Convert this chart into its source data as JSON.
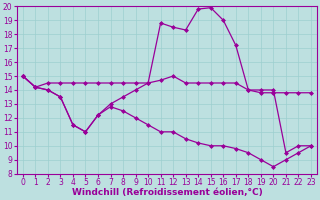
{
  "xlabel": "Windchill (Refroidissement éolien,°C)",
  "bg_color": "#bde0e0",
  "grid_color": "#9ccfcf",
  "line_color": "#990099",
  "xlim": [
    -0.5,
    23.5
  ],
  "ylim": [
    8,
    20
  ],
  "xticks": [
    0,
    1,
    2,
    3,
    4,
    5,
    6,
    7,
    8,
    9,
    10,
    11,
    12,
    13,
    14,
    15,
    16,
    17,
    18,
    19,
    20,
    21,
    22,
    23
  ],
  "yticks": [
    8,
    9,
    10,
    11,
    12,
    13,
    14,
    15,
    16,
    17,
    18,
    19,
    20
  ],
  "line1_x": [
    0,
    1,
    2,
    3,
    4,
    5,
    6,
    7,
    8,
    9,
    10,
    11,
    12,
    13,
    14,
    15,
    16,
    17,
    18,
    19,
    20,
    21,
    22,
    23
  ],
  "line1_y": [
    15.0,
    14.2,
    14.5,
    14.5,
    14.5,
    14.5,
    14.5,
    14.5,
    14.5,
    14.5,
    14.5,
    14.7,
    15.0,
    14.5,
    14.5,
    14.5,
    14.5,
    14.5,
    14.0,
    13.8,
    13.8,
    13.8,
    13.8,
    13.8
  ],
  "line2_x": [
    0,
    1,
    2,
    3,
    4,
    5,
    6,
    7,
    8,
    9,
    10,
    11,
    12,
    13,
    14,
    15,
    16,
    17,
    18,
    19,
    20,
    21,
    22,
    23
  ],
  "line2_y": [
    15.0,
    14.2,
    14.0,
    13.5,
    11.5,
    11.0,
    12.2,
    13.0,
    13.5,
    14.0,
    14.5,
    18.8,
    18.5,
    18.3,
    19.8,
    19.9,
    19.0,
    17.2,
    14.0,
    14.0,
    14.0,
    9.5,
    10.0,
    10.0
  ],
  "line3_x": [
    0,
    1,
    2,
    3,
    4,
    5,
    6,
    7,
    8,
    9,
    10,
    11,
    12,
    13,
    14,
    15,
    16,
    17,
    18,
    19,
    20,
    21,
    22,
    23
  ],
  "line3_y": [
    15.0,
    14.2,
    14.0,
    13.5,
    11.5,
    11.0,
    12.2,
    12.8,
    12.5,
    12.0,
    11.5,
    11.0,
    11.0,
    10.5,
    10.2,
    10.0,
    10.0,
    9.8,
    9.5,
    9.0,
    8.5,
    9.0,
    9.5,
    10.0
  ],
  "marker": "D",
  "marker_size": 2.0,
  "line_width": 0.9,
  "tick_fontsize": 5.5,
  "label_fontsize": 6.5
}
